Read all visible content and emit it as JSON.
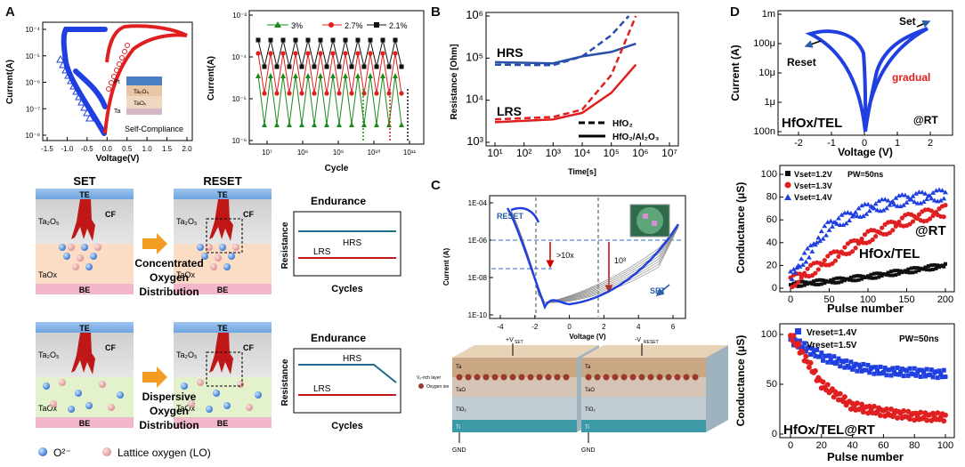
{
  "panels": {
    "a": "A",
    "b": "B",
    "c": "C",
    "d": "D"
  },
  "a1": {
    "ylabel": "Current(A)",
    "xlabel": "Voltage(V)",
    "yticks": [
      "10⁻⁴",
      "10⁻⁵",
      "10⁻⁶",
      "10⁻⁷",
      "10⁻⁸"
    ],
    "xticks": [
      "-1.5",
      "-1.0",
      "-0.5",
      "0.0",
      "0.5",
      "1.0",
      "1.5",
      "2.0"
    ],
    "inset_layers": [
      "Pt",
      "Ta₂O₅",
      "TaOₓ",
      "Ta"
    ],
    "note": "Self-Compliance"
  },
  "a2": {
    "ylabel": "Current(A)",
    "xlabel": "Cycle",
    "yticks": [
      "10⁻³",
      "10⁻⁴",
      "10⁻⁵",
      "10⁻⁶"
    ],
    "xticks": [
      "10⁷",
      "10⁸",
      "10⁹",
      "10¹⁰",
      "10¹¹"
    ],
    "legend": [
      "3%",
      "2.7%",
      "2.1%"
    ],
    "colors": {
      "green": "#1e8a1e",
      "red": "#e02020",
      "black": "#111111"
    }
  },
  "schem_a": {
    "set": "SET",
    "reset": "RESET",
    "te": "TE",
    "be": "BE",
    "cf": "CF",
    "ta2o5": "Ta₂O₅",
    "taox": "TaOx",
    "concentrated": [
      "Concentrated",
      "Oxygen",
      "Distribution"
    ],
    "dispersive": [
      "Dispersive",
      "Oxygen",
      "Distribution"
    ],
    "endurance": "Endurance",
    "hrs": "HRS",
    "lrs": "LRS",
    "resistance": "Resistance",
    "cycles": "Cycles",
    "legend_o2": "O²⁻",
    "legend_lo": "Lattice oxygen (LO)"
  },
  "b": {
    "ylabel": "Resistance [Ohm]",
    "xlabel": "Time[s]",
    "yticks": [
      "10⁶",
      "10⁵",
      "10⁴",
      "10³"
    ],
    "xticks": [
      "10¹",
      "10²",
      "10³",
      "10⁴",
      "10⁵",
      "10⁶",
      "10⁷"
    ],
    "hrs": "HRS",
    "lrs": "LRS",
    "legend": [
      "HfO₂",
      "HfO₂/Al₂O₃"
    ],
    "chart_data": {
      "type": "line",
      "x_unit": "s",
      "xlim": [
        10,
        10000000
      ],
      "ylim": [
        1000,
        1000000
      ],
      "series": [
        {
          "name": "HRS HfO2",
          "x": [
            10,
            1000,
            10000,
            100000,
            400000
          ],
          "y": [
            70000,
            68000,
            110000,
            350000,
            1000000
          ]
        },
        {
          "name": "HRS HfO2/Al2O3",
          "x": [
            10,
            1000,
            10000,
            100000,
            700000
          ],
          "y": [
            80000,
            75000,
            110000,
            140000,
            220000
          ]
        },
        {
          "name": "LRS HfO2",
          "x": [
            10,
            1000,
            10000,
            100000,
            700000
          ],
          "y": [
            3500,
            4000,
            6000,
            40000,
            1000000
          ]
        },
        {
          "name": "LRS HfO2/Al2O3",
          "x": [
            10,
            1000,
            10000,
            100000,
            700000
          ],
          "y": [
            3000,
            3500,
            5000,
            15000,
            70000
          ]
        }
      ]
    }
  },
  "c": {
    "ylabel": "Current (A)",
    "xlabel": "Voltage (V)",
    "yticks": [
      "1E-04",
      "1E-06",
      "1E-08",
      "1E-10"
    ],
    "xticks": [
      "-4",
      "-2",
      "0",
      "2",
      "4",
      "6"
    ],
    "reset": "RESET",
    "set": "SET",
    "ratio1": ">10x",
    "ratio2": "10³",
    "box1": {
      "top": "Ta",
      "top_label": "+V",
      "top_sub": "SET",
      "layer": "TaO",
      "vo": "Vₒ-rich layer",
      "ion": "Oxygen ion",
      "tio2": "TiO₂",
      "bot": "Ti",
      "gnd": "GND"
    },
    "box2": {
      "top": "Ta",
      "top_label": "-V",
      "top_sub": "RESET",
      "layer": "TaO",
      "tio2": "TiO₂",
      "bot": "Ti",
      "gnd": "GND"
    }
  },
  "d1": {
    "ylabel": "Current (A)",
    "xlabel": "Voltage (V)",
    "yticks": [
      "1m",
      "100μ",
      "10μ",
      "1μ",
      "100n"
    ],
    "xticks": [
      "-2",
      "-1",
      "0",
      "1",
      "2"
    ],
    "set": "Set",
    "reset": "Reset",
    "gradual": "gradual",
    "device": "HfOx/TEL",
    "temp": "@RT"
  },
  "d2": {
    "ylabel": "Conductance (μS)",
    "xlabel": "Pulse number",
    "yticks": [
      "100",
      "80",
      "60",
      "40",
      "20",
      "0"
    ],
    "xticks": [
      "0",
      "50",
      "100",
      "150",
      "200"
    ],
    "legend": [
      "Vset=1.2V",
      "Vset=1.3V",
      "Vset=1.4V"
    ],
    "pw": "PW=50ns",
    "temp": "@RT",
    "device": "HfOx/TEL",
    "chart_data": {
      "type": "scatter",
      "xlim": [
        0,
        200
      ],
      "ylim": [
        0,
        100
      ],
      "series": [
        {
          "name": "Vset=1.2V",
          "x": [
            0,
            50,
            100,
            150,
            200
          ],
          "y": [
            3,
            6,
            10,
            15,
            20
          ]
        },
        {
          "name": "Vset=1.3V",
          "x": [
            0,
            50,
            100,
            150,
            200
          ],
          "y": [
            5,
            25,
            45,
            60,
            68
          ]
        },
        {
          "name": "Vset=1.4V",
          "x": [
            0,
            50,
            100,
            150,
            200
          ],
          "y": [
            10,
            55,
            70,
            78,
            82
          ]
        }
      ]
    }
  },
  "d3": {
    "ylabel": "Conductance (μS)",
    "xlabel": "Pulse number",
    "yticks": [
      "100",
      "50",
      "0"
    ],
    "xticks": [
      "0",
      "20",
      "40",
      "60",
      "80",
      "100"
    ],
    "legend": [
      "Vreset=1.4V",
      "Vreset=1.5V"
    ],
    "pw": "PW=50ns",
    "device": "HfOx/TEL@RT",
    "chart_data": {
      "type": "scatter",
      "xlim": [
        0,
        100
      ],
      "ylim": [
        0,
        100
      ],
      "series": [
        {
          "name": "Vreset=1.4V",
          "x": [
            0,
            20,
            40,
            60,
            80,
            100
          ],
          "y": [
            95,
            78,
            68,
            63,
            62,
            60
          ]
        },
        {
          "name": "Vreset=1.5V",
          "x": [
            0,
            20,
            40,
            60,
            80,
            100
          ],
          "y": [
            100,
            50,
            28,
            22,
            18,
            17
          ]
        }
      ]
    }
  }
}
